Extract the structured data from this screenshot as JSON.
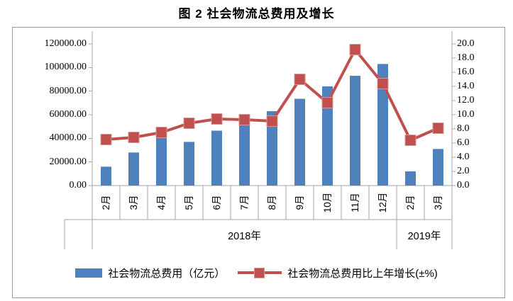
{
  "title": "图 2 社会物流总费用及增长",
  "chart_data": {
    "type": "bar+line",
    "categories": [
      "2月",
      "3月",
      "4月",
      "5月",
      "6月",
      "7月",
      "8月",
      "9月",
      "10月",
      "11月",
      "12月",
      "2月",
      "3月"
    ],
    "category_groups": [
      {
        "label": "2018年",
        "span": 11
      },
      {
        "label": "2019年",
        "span": 2
      }
    ],
    "series": [
      {
        "name": "社会物流总费用（亿元）",
        "type": "bar",
        "axis": "left",
        "color": "#4F81BD",
        "values": [
          16000,
          28000,
          43000,
          37000,
          46500,
          53000,
          63000,
          73500,
          84000,
          93000,
          103000,
          12000,
          31000
        ]
      },
      {
        "name": "社会物流总费用比上年增长(±%)",
        "type": "line",
        "axis": "right",
        "color": "#C0504D",
        "values": [
          6.5,
          6.8,
          7.5,
          8.8,
          9.4,
          9.3,
          9.1,
          15.0,
          11.7,
          19.2,
          14.4,
          6.4,
          8.1
        ]
      }
    ],
    "left_axis": {
      "min": 0,
      "max": 120000,
      "step": 20000,
      "tick_labels": [
        "120000.00",
        "100000.00",
        "80000.00",
        "60000.00",
        "40000.00",
        "20000.00",
        "0.00"
      ]
    },
    "right_axis": {
      "min": 0,
      "max": 20,
      "step": 2,
      "tick_labels": [
        "20.0",
        "18.0",
        "16.0",
        "14.0",
        "12.0",
        "10.0",
        "8.0",
        "6.0",
        "4.0",
        "2.0",
        "0.0"
      ]
    },
    "grid": "off",
    "legend_position": "bottom",
    "colors": {
      "bar": "#4F81BD",
      "line": "#C0504D",
      "axis": "#A6A6A6"
    }
  }
}
